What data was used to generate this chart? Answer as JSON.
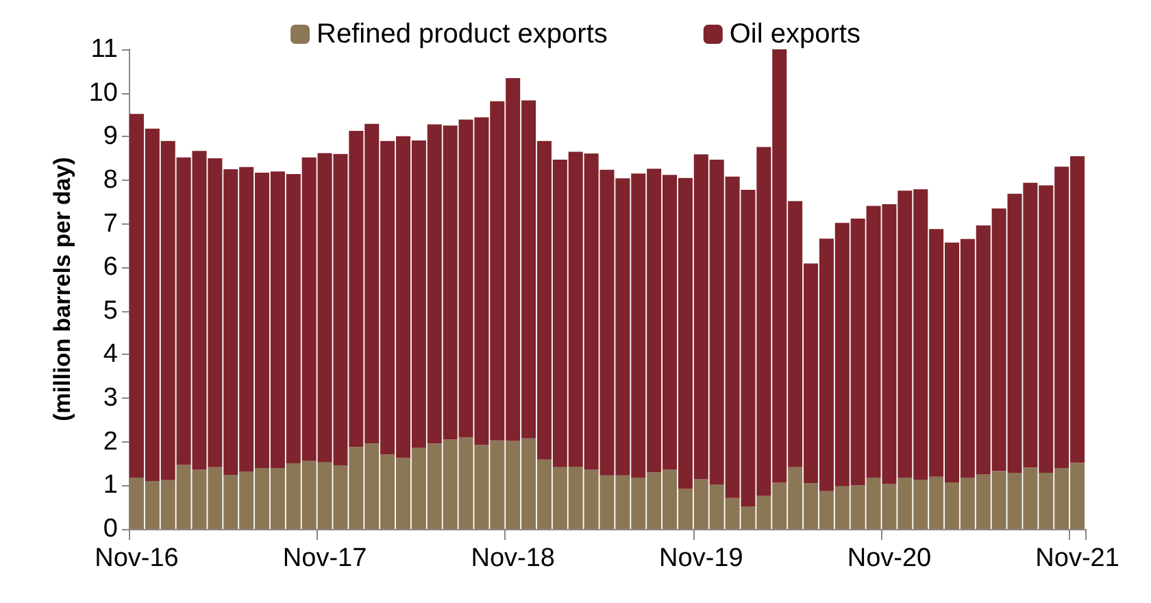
{
  "chart_data": {
    "type": "bar",
    "stacked": true,
    "ylabel": "(million barrels per day)",
    "categories": [
      "Nov-16",
      null,
      null,
      null,
      null,
      null,
      null,
      null,
      null,
      null,
      null,
      null,
      "Nov-17",
      null,
      null,
      null,
      null,
      null,
      null,
      null,
      null,
      null,
      null,
      null,
      "Nov-18",
      null,
      null,
      null,
      null,
      null,
      null,
      null,
      null,
      null,
      null,
      null,
      "Nov-19",
      null,
      null,
      null,
      null,
      null,
      null,
      null,
      null,
      null,
      null,
      null,
      "Nov-20",
      null,
      null,
      null,
      null,
      null,
      null,
      null,
      null,
      null,
      null,
      null,
      "Nov-21"
    ],
    "series": [
      {
        "name": "Refined product exports",
        "color": "#8b7755",
        "values": [
          1.18,
          1.1,
          1.12,
          1.47,
          1.36,
          1.42,
          1.24,
          1.32,
          1.4,
          1.4,
          1.51,
          1.56,
          1.53,
          1.46,
          1.88,
          1.96,
          1.71,
          1.63,
          1.86,
          1.96,
          2.05,
          2.1,
          1.93,
          2.03,
          2.02,
          2.08,
          1.59,
          1.42,
          1.43,
          1.36,
          1.23,
          1.23,
          1.18,
          1.3,
          1.36,
          0.92,
          1.14,
          1.02,
          0.71,
          0.52,
          0.76,
          1.06,
          1.42,
          1.05,
          0.87,
          0.98,
          1.0,
          1.18,
          1.03,
          1.18,
          1.13,
          1.2,
          1.07,
          1.18,
          1.25,
          1.33,
          1.29,
          1.41,
          1.29,
          1.39,
          1.52
        ]
      },
      {
        "name": "Oil exports",
        "color": "#7f232d",
        "values": [
          8.34,
          8.08,
          7.78,
          7.05,
          7.31,
          7.08,
          7.01,
          6.98,
          6.77,
          6.8,
          6.63,
          6.96,
          7.09,
          7.14,
          7.25,
          7.33,
          7.19,
          7.38,
          7.05,
          7.32,
          7.2,
          7.29,
          7.51,
          7.78,
          8.32,
          7.75,
          7.31,
          7.05,
          7.22,
          7.25,
          7.01,
          6.81,
          6.97,
          6.96,
          6.76,
          7.13,
          7.45,
          7.45,
          7.37,
          7.26,
          8.0,
          9.94,
          6.1,
          5.04,
          5.79,
          6.04,
          6.12,
          6.23,
          6.42,
          6.58,
          6.66,
          5.68,
          5.5,
          5.47,
          5.71,
          6.02,
          6.4,
          6.53,
          6.59,
          6.92,
          7.03
        ]
      }
    ],
    "ylim": [
      0,
      11
    ],
    "yticks": [
      0,
      1,
      2,
      3,
      4,
      5,
      6,
      7,
      8,
      9,
      10,
      11
    ],
    "grid": false,
    "legend": "top"
  }
}
